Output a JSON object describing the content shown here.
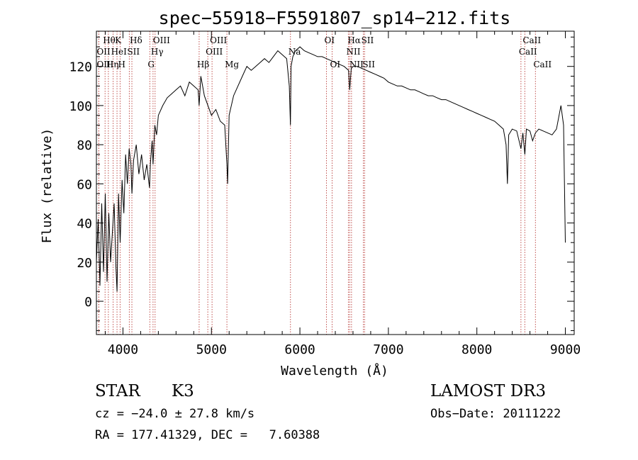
{
  "chart_data": {
    "type": "line",
    "title": "spec−55918−F5591807_sp14−212.fits",
    "xlabel": "Wavelength (Å)",
    "ylabel": "Flux (relative)",
    "xlim": [
      3700,
      9100
    ],
    "ylim": [
      -17,
      138
    ],
    "xticks": [
      4000,
      5000,
      6000,
      7000,
      8000,
      9000
    ],
    "yticks": [
      0,
      20,
      40,
      60,
      80,
      100,
      120
    ],
    "series": [
      {
        "name": "flux",
        "x": [
          3700,
          3720,
          3740,
          3760,
          3780,
          3800,
          3820,
          3840,
          3860,
          3880,
          3900,
          3920,
          3933,
          3950,
          3968,
          3990,
          4010,
          4030,
          4050,
          4070,
          4090,
          4101,
          4120,
          4150,
          4180,
          4210,
          4240,
          4270,
          4300,
          4310,
          4330,
          4340,
          4360,
          4380,
          4400,
          4450,
          4500,
          4550,
          4600,
          4650,
          4700,
          4750,
          4800,
          4850,
          4861,
          4880,
          4920,
          4960,
          5000,
          5050,
          5100,
          5150,
          5175,
          5183,
          5200,
          5250,
          5300,
          5350,
          5400,
          5450,
          5500,
          5550,
          5600,
          5650,
          5700,
          5750,
          5800,
          5850,
          5880,
          5893,
          5900,
          5920,
          5950,
          6000,
          6050,
          6100,
          6150,
          6200,
          6250,
          6300,
          6350,
          6400,
          6450,
          6500,
          6550,
          6563,
          6580,
          6600,
          6650,
          6700,
          6750,
          6800,
          6850,
          6900,
          6950,
          7000,
          7050,
          7100,
          7150,
          7200,
          7250,
          7300,
          7350,
          7400,
          7450,
          7500,
          7550,
          7600,
          7650,
          7700,
          7750,
          7800,
          7850,
          7900,
          7950,
          8000,
          8050,
          8100,
          8150,
          8200,
          8250,
          8300,
          8330,
          8345,
          8360,
          8400,
          8450,
          8498,
          8520,
          8542,
          8560,
          8600,
          8630,
          8662,
          8700,
          8750,
          8800,
          8850,
          8900,
          8950,
          8980,
          9000
        ],
        "values": [
          20,
          42,
          8,
          50,
          15,
          55,
          10,
          45,
          20,
          35,
          50,
          18,
          5,
          55,
          30,
          62,
          45,
          75,
          60,
          78,
          70,
          55,
          72,
          80,
          65,
          75,
          62,
          70,
          58,
          70,
          82,
          70,
          90,
          85,
          95,
          100,
          104,
          106,
          108,
          110,
          105,
          112,
          110,
          108,
          100,
          115,
          105,
          100,
          95,
          98,
          92,
          90,
          70,
          60,
          95,
          105,
          110,
          115,
          120,
          118,
          120,
          122,
          124,
          122,
          125,
          128,
          126,
          124,
          110,
          90,
          120,
          125,
          128,
          130,
          128,
          127,
          126,
          125,
          125,
          124,
          123,
          122,
          121,
          120,
          118,
          108,
          119,
          120,
          120,
          119,
          118,
          117,
          116,
          115,
          114,
          112,
          111,
          110,
          110,
          109,
          108,
          108,
          107,
          106,
          105,
          105,
          104,
          103,
          103,
          102,
          101,
          100,
          99,
          98,
          97,
          96,
          95,
          94,
          93,
          92,
          90,
          88,
          80,
          60,
          85,
          88,
          87,
          78,
          86,
          75,
          88,
          87,
          82,
          86,
          88,
          87,
          86,
          85,
          88,
          100,
          90,
          30
        ]
      }
    ],
    "lines": [
      {
        "label": "Hθ",
        "x": 3798,
        "row": 1
      },
      {
        "label": "OII",
        "x": 3727,
        "row": 2
      },
      {
        "label": "OIII",
        "x": 3727,
        "row": 3
      },
      {
        "label": "Hη",
        "x": 3835,
        "row": 3
      },
      {
        "label": "HeI",
        "x": 3889,
        "row": 2
      },
      {
        "label": "K",
        "x": 3933,
        "row": 1
      },
      {
        "label": "H",
        "x": 3968,
        "row": 3
      },
      {
        "label": "SII",
        "x": 4072,
        "row": 2
      },
      {
        "label": "Hδ",
        "x": 4101,
        "row": 1
      },
      {
        "label": "G",
        "x": 4304,
        "row": 3
      },
      {
        "label": "Hγ",
        "x": 4340,
        "row": 2
      },
      {
        "label": "OIII",
        "x": 4363,
        "row": 1
      },
      {
        "label": "Hβ",
        "x": 4861,
        "row": 3
      },
      {
        "label": "OIII",
        "x": 4959,
        "row": 2
      },
      {
        "label": "OIII",
        "x": 5007,
        "row": 1
      },
      {
        "label": "Mg",
        "x": 5175,
        "row": 3
      },
      {
        "label": "Na",
        "x": 5893,
        "row": 2
      },
      {
        "label": "OI",
        "x": 6300,
        "row": 1
      },
      {
        "label": "OI",
        "x": 6364,
        "row": 3
      },
      {
        "label": "NII",
        "x": 6548,
        "row": 2
      },
      {
        "label": "Hα",
        "x": 6563,
        "row": 1
      },
      {
        "label": "NII",
        "x": 6583,
        "row": 3
      },
      {
        "label": "SII",
        "x": 6717,
        "row": 1
      },
      {
        "label": "SII",
        "x": 6731,
        "row": 3
      },
      {
        "label": "CaII",
        "x": 8498,
        "row": 2
      },
      {
        "label": "CaII",
        "x": 8542,
        "row": 1
      },
      {
        "label": "CaII",
        "x": 8662,
        "row": 3
      }
    ]
  },
  "info": {
    "object_class": "STAR",
    "subclass": "K3",
    "survey": "LAMOST DR3",
    "redshift": "cz = −24.0 ± 27.8 km/s",
    "obs_date": "Obs−Date: 20111222",
    "coords": "RA = 177.41329, DEC =   7.60388"
  }
}
